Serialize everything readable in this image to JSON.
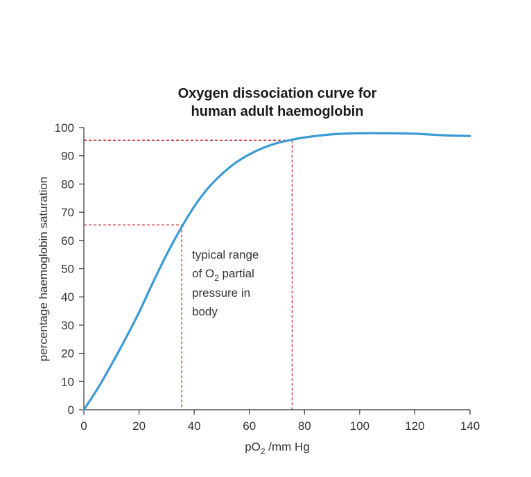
{
  "colors": {
    "curve": "#3a9ad3",
    "guides": "#d0202a",
    "text": "#333333"
  },
  "chart_data": {
    "type": "line",
    "title": [
      "Oxygen dissociation curve for",
      "human adult haemoglobin"
    ],
    "xlabel_main": "pO",
    "xlabel_sub": "2",
    "xlabel_rest": " /mm Hg",
    "ylabel": "percentage haemoglobin saturation",
    "xlim": [
      0,
      140
    ],
    "ylim": [
      0,
      100
    ],
    "xticks": [
      "0",
      "20",
      "40",
      "60",
      "80",
      "100",
      "120",
      "140"
    ],
    "xtick_values": [
      0,
      20,
      40,
      60,
      80,
      100,
      120,
      140
    ],
    "yticks": [
      "0",
      "10",
      "20",
      "30",
      "40",
      "50",
      "60",
      "70",
      "80",
      "90",
      "100"
    ],
    "ytick_values": [
      0,
      10,
      20,
      30,
      40,
      50,
      60,
      70,
      80,
      90,
      100
    ],
    "grid": false,
    "series": [
      {
        "x": [
          0,
          5,
          10,
          15,
          20,
          25,
          30,
          35,
          40,
          45,
          50,
          55,
          60,
          65,
          70,
          75,
          80,
          90,
          100,
          110,
          120,
          130,
          140
        ],
        "y": [
          0,
          7.5,
          16,
          25,
          34.5,
          45,
          55,
          64,
          72,
          78.5,
          83.5,
          87.5,
          90.5,
          92.8,
          94.5,
          95.6,
          96.5,
          97.6,
          98,
          98,
          97.8,
          97.3,
          97
        ]
      }
    ],
    "reference_lines": [
      {
        "x": 35.5,
        "y": 65.5
      },
      {
        "x": 75.5,
        "y": 95.5
      }
    ],
    "annotation": {
      "line1": "typical range",
      "line2_pre": "of O",
      "line2_sub": "2",
      "line2_post": " partial",
      "line3": "pressure in",
      "line4": "body"
    }
  }
}
